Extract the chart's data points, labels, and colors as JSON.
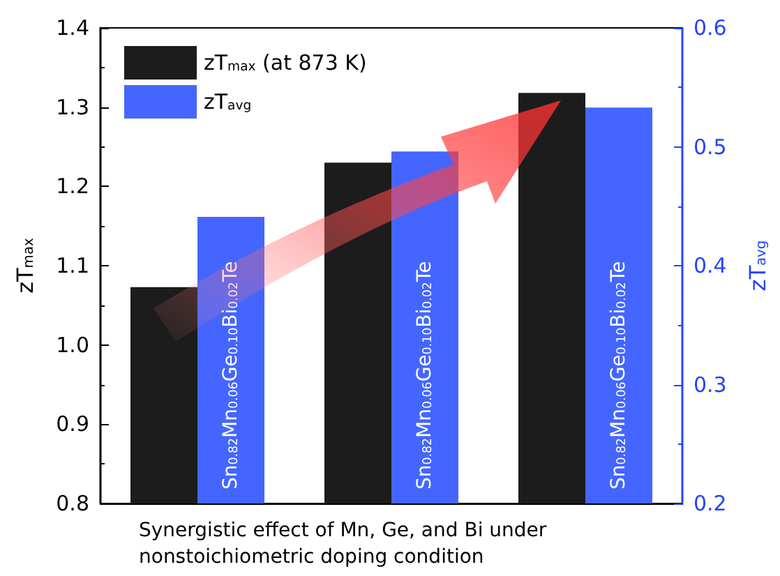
{
  "chart_data": {
    "type": "bar",
    "categories": [
      "Sn$_{0.82}$Mn$_{0.06}$Ge$_{0.10}$Bi$_{0.02}$Te",
      "Sn$_{0.82}$Mn$_{0.06}$Ge$_{0.10}$Bi$_{0.02}$Te",
      "Sn$_{0.82}$Mn$_{0.06}$Ge$_{0.10}$Bi$_{0.02}$Te"
    ],
    "series": [
      {
        "name": "zT$_{max}$ (at 873 K)",
        "color": "#1c1c1c",
        "values": [
          1.073,
          1.23,
          1.318
        ]
      },
      {
        "name": "zT$_{avg}$",
        "color": "#4466ff",
        "values": [
          0.441,
          0.496,
          0.533
        ],
        "axis": "y2"
      }
    ],
    "xlabel": "Synergistic effect of Mn, Ge, and Bi under nonstoichiometric doping condition",
    "ylabel": "zT$_{max}$",
    "y2label": "zT$_{avg}$",
    "ylim": [
      0.8,
      1.4
    ],
    "yticks": [
      0.8,
      0.9,
      {
        "value": 1,
        "label": "1.0"
      },
      1.1,
      1.2,
      1.3,
      1.4
    ],
    "y2lim": [
      0.2,
      0.6
    ],
    "y2ticks": [
      0.2,
      0.3,
      0.4,
      0.5,
      0.6
    ],
    "grid": false,
    "legend": "top left"
  }
}
